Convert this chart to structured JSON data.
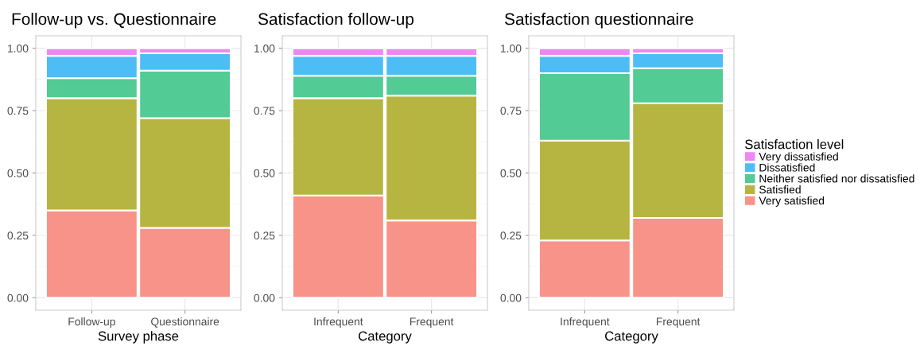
{
  "chart_data": [
    {
      "type": "bar",
      "stacked": true,
      "title": "Follow-up vs. Questionnaire",
      "xlabel": "Survey phase",
      "categories": [
        "Follow-up",
        "Questionnaire"
      ],
      "ylim": [
        -0.05,
        1.05
      ],
      "yticks": [
        {
          "value": 0,
          "label": "0.00"
        },
        {
          "value": 0.25,
          "label": "0.25"
        },
        {
          "value": 0.5,
          "label": "0.50"
        },
        {
          "value": 0.75,
          "label": "0.75"
        },
        {
          "value": 1,
          "label": "1.00"
        }
      ],
      "grid": true,
      "series": [
        {
          "color": "#f8938a",
          "values": [
            0.35,
            0.28
          ]
        },
        {
          "color": "#b7b542",
          "values": [
            0.45,
            0.44
          ]
        },
        {
          "color": "#52cb95",
          "values": [
            0.08,
            0.19
          ]
        },
        {
          "color": "#4dbef5",
          "values": [
            0.09,
            0.07
          ]
        },
        {
          "color": "#ed88f3",
          "values": [
            0.03,
            0.02
          ]
        }
      ]
    },
    {
      "type": "bar",
      "stacked": true,
      "title": "Satisfaction follow-up",
      "xlabel": "Category",
      "categories": [
        "Infrequent",
        "Frequent"
      ],
      "ylim": [
        -0.05,
        1.05
      ],
      "yticks": [
        {
          "value": 0,
          "label": "0.00"
        },
        {
          "value": 0.25,
          "label": "0.25"
        },
        {
          "value": 0.5,
          "label": "0.50"
        },
        {
          "value": 0.75,
          "label": "0.75"
        },
        {
          "value": 1,
          "label": "1.00"
        }
      ],
      "grid": true,
      "series": [
        {
          "color": "#f8938a",
          "values": [
            0.41,
            0.31
          ]
        },
        {
          "color": "#b7b542",
          "values": [
            0.39,
            0.5
          ]
        },
        {
          "color": "#52cb95",
          "values": [
            0.09,
            0.08
          ]
        },
        {
          "color": "#4dbef5",
          "values": [
            0.08,
            0.08
          ]
        },
        {
          "color": "#ed88f3",
          "values": [
            0.03,
            0.03
          ]
        }
      ]
    },
    {
      "type": "bar",
      "stacked": true,
      "title": "Satisfaction questionnaire",
      "xlabel": "Category",
      "categories": [
        "Infrequent",
        "Frequent"
      ],
      "ylim": [
        -0.05,
        1.05
      ],
      "yticks": [
        {
          "value": 0,
          "label": "0.00"
        },
        {
          "value": 0.25,
          "label": "0.25"
        },
        {
          "value": 0.5,
          "label": "0.50"
        },
        {
          "value": 0.75,
          "label": "0.75"
        },
        {
          "value": 1,
          "label": "1.00"
        }
      ],
      "grid": true,
      "legend": "right",
      "legend_title": "Satisfaction level",
      "series": [
        {
          "name": "Very satisfied",
          "color": "#f8938a",
          "values": [
            0.23,
            0.32
          ]
        },
        {
          "name": "Satisfied",
          "color": "#b7b542",
          "values": [
            0.4,
            0.46
          ]
        },
        {
          "name": "Neither satisfied nor dissatisfied",
          "color": "#52cb95",
          "values": [
            0.27,
            0.14
          ]
        },
        {
          "name": "Dissatisfied",
          "color": "#4dbef5",
          "values": [
            0.07,
            0.06
          ]
        },
        {
          "name": "Very dissatisfied",
          "color": "#ed88f3",
          "values": [
            0.03,
            0.02
          ]
        }
      ]
    }
  ]
}
